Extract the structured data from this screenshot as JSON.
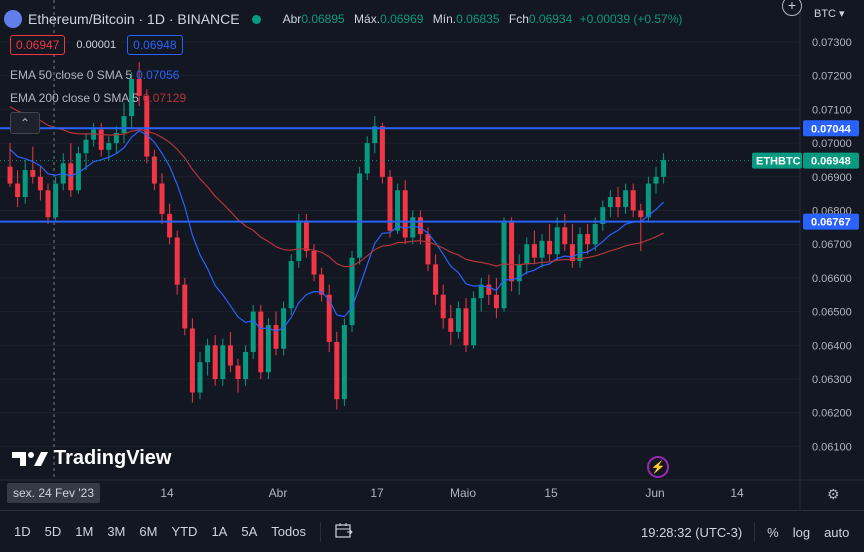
{
  "header": {
    "symbol_title": "Ethereum/Bitcoin · 1D · BINANCE",
    "open_label": "Abr",
    "open_value": "0.06895",
    "high_label": "Máx.",
    "high_value": "0.06969",
    "low_label": "Mín.",
    "low_value": "0.06835",
    "close_label": "Fch",
    "close_value": "0.06934",
    "change_value": "+0.00039 (+0.57%)"
  },
  "quote": {
    "sell": "0.06947",
    "spread": "0.00001",
    "buy": "0.06948"
  },
  "indicators": [
    {
      "label": "EMA 50 close 0 SMA 5",
      "value": "0.07056",
      "color": "#2962ff"
    },
    {
      "label": "EMA 200 close 0 SMA 5",
      "value": "0.07129",
      "color": "#b2353b"
    }
  ],
  "currency": "BTC",
  "price_axis": {
    "min": 0.0605,
    "max": 0.0737,
    "ticks": [
      "0.07300",
      "0.07200",
      "0.07100",
      "0.07000",
      "0.06900",
      "0.06800",
      "0.06700",
      "0.06600",
      "0.06500",
      "0.06400",
      "0.06300",
      "0.06200",
      "0.06100"
    ],
    "labels": [
      {
        "text": "0.07044",
        "value": 0.07044,
        "color": "#2962ff"
      },
      {
        "text": "0.06948",
        "value": 0.06948,
        "color": "#089981",
        "symbol": "ETHBTC"
      },
      {
        "text": "0.06767",
        "value": 0.06767,
        "color": "#2962ff"
      }
    ]
  },
  "time_axis": [
    "14",
    "Abr",
    "17",
    "Maio",
    "15",
    "Jun",
    "14"
  ],
  "hover_date": "sex. 24 Fev '23",
  "branding": "TradingView",
  "toolbar": {
    "ranges": [
      "1D",
      "5D",
      "1M",
      "3M",
      "6M",
      "YTD",
      "1A",
      "5A",
      "Todos"
    ],
    "time": "19:28:32 (UTC-3)",
    "percent": "%",
    "log": "log",
    "auto": "auto"
  },
  "colors": {
    "up": "#089981",
    "down": "#f23645",
    "ema50": "#2962ff",
    "ema200": "#b2353b",
    "hline": "#2962ff"
  },
  "chart_data": {
    "type": "candlestick",
    "candles": [
      [
        0.0693,
        0.07,
        0.0687,
        0.0688
      ],
      [
        0.0688,
        0.0692,
        0.0681,
        0.0684
      ],
      [
        0.0684,
        0.0695,
        0.0682,
        0.0692
      ],
      [
        0.0692,
        0.0699,
        0.0688,
        0.069
      ],
      [
        0.069,
        0.0693,
        0.0683,
        0.0686
      ],
      [
        0.0686,
        0.0688,
        0.0676,
        0.0678
      ],
      [
        0.0678,
        0.069,
        0.0677,
        0.0688
      ],
      [
        0.0688,
        0.0697,
        0.0686,
        0.0694
      ],
      [
        0.0694,
        0.07,
        0.0684,
        0.0686
      ],
      [
        0.0686,
        0.0699,
        0.0685,
        0.0697
      ],
      [
        0.0697,
        0.0703,
        0.0692,
        0.0701
      ],
      [
        0.0701,
        0.0706,
        0.0699,
        0.0704
      ],
      [
        0.0704,
        0.0706,
        0.0696,
        0.0698
      ],
      [
        0.0698,
        0.0702,
        0.0695,
        0.07
      ],
      [
        0.07,
        0.0705,
        0.0697,
        0.0703
      ],
      [
        0.0703,
        0.0712,
        0.07,
        0.0708
      ],
      [
        0.0708,
        0.0721,
        0.0704,
        0.0719
      ],
      [
        0.0719,
        0.0724,
        0.0711,
        0.0714
      ],
      [
        0.0714,
        0.0716,
        0.0694,
        0.0696
      ],
      [
        0.0696,
        0.0698,
        0.0686,
        0.0688
      ],
      [
        0.0688,
        0.0691,
        0.0676,
        0.0679
      ],
      [
        0.0679,
        0.0682,
        0.067,
        0.0672
      ],
      [
        0.0672,
        0.0674,
        0.0655,
        0.0658
      ],
      [
        0.0658,
        0.066,
        0.0643,
        0.0645
      ],
      [
        0.0645,
        0.0648,
        0.0623,
        0.0626
      ],
      [
        0.0626,
        0.0638,
        0.0624,
        0.0635
      ],
      [
        0.0635,
        0.0642,
        0.0631,
        0.064
      ],
      [
        0.064,
        0.0643,
        0.0628,
        0.063
      ],
      [
        0.063,
        0.0642,
        0.0628,
        0.064
      ],
      [
        0.064,
        0.0644,
        0.0632,
        0.0634
      ],
      [
        0.0634,
        0.0636,
        0.0626,
        0.063
      ],
      [
        0.063,
        0.064,
        0.0628,
        0.0638
      ],
      [
        0.0638,
        0.0652,
        0.0636,
        0.065
      ],
      [
        0.065,
        0.0652,
        0.063,
        0.0632
      ],
      [
        0.0632,
        0.0648,
        0.063,
        0.0646
      ],
      [
        0.0646,
        0.065,
        0.0637,
        0.0639
      ],
      [
        0.0639,
        0.0653,
        0.0637,
        0.0651
      ],
      [
        0.0651,
        0.0667,
        0.0649,
        0.0665
      ],
      [
        0.0665,
        0.0679,
        0.0663,
        0.0677
      ],
      [
        0.0677,
        0.0679,
        0.0666,
        0.0668
      ],
      [
        0.0668,
        0.067,
        0.0659,
        0.0661
      ],
      [
        0.0661,
        0.0663,
        0.0653,
        0.0655
      ],
      [
        0.0655,
        0.0658,
        0.0638,
        0.0641
      ],
      [
        0.0641,
        0.0644,
        0.0621,
        0.0624
      ],
      [
        0.0624,
        0.0648,
        0.0622,
        0.0646
      ],
      [
        0.0646,
        0.0668,
        0.0644,
        0.0666
      ],
      [
        0.0666,
        0.0693,
        0.0664,
        0.0691
      ],
      [
        0.0691,
        0.0702,
        0.0689,
        0.07
      ],
      [
        0.07,
        0.0708,
        0.0697,
        0.0705
      ],
      [
        0.0705,
        0.0706,
        0.0688,
        0.069
      ],
      [
        0.069,
        0.0692,
        0.0672,
        0.0674
      ],
      [
        0.0674,
        0.0688,
        0.0673,
        0.0686
      ],
      [
        0.0686,
        0.0689,
        0.067,
        0.0672
      ],
      [
        0.0672,
        0.068,
        0.067,
        0.0678
      ],
      [
        0.0678,
        0.068,
        0.067,
        0.0673
      ],
      [
        0.0673,
        0.0675,
        0.0662,
        0.0664
      ],
      [
        0.0664,
        0.0667,
        0.0652,
        0.0655
      ],
      [
        0.0655,
        0.0658,
        0.0645,
        0.0648
      ],
      [
        0.0648,
        0.0652,
        0.064,
        0.0644
      ],
      [
        0.0644,
        0.0653,
        0.0642,
        0.0651
      ],
      [
        0.0651,
        0.0654,
        0.0638,
        0.064
      ],
      [
        0.064,
        0.0656,
        0.0639,
        0.0654
      ],
      [
        0.0654,
        0.066,
        0.065,
        0.0658
      ],
      [
        0.0658,
        0.0661,
        0.0652,
        0.0655
      ],
      [
        0.0655,
        0.066,
        0.0648,
        0.0651
      ],
      [
        0.0651,
        0.0678,
        0.065,
        0.0677
      ],
      [
        0.0677,
        0.0678,
        0.0656,
        0.0659
      ],
      [
        0.0659,
        0.0667,
        0.0655,
        0.0664
      ],
      [
        0.0664,
        0.0672,
        0.0661,
        0.067
      ],
      [
        0.067,
        0.0674,
        0.0664,
        0.0666
      ],
      [
        0.0666,
        0.0673,
        0.0663,
        0.0671
      ],
      [
        0.0671,
        0.0676,
        0.0665,
        0.0667
      ],
      [
        0.0667,
        0.0678,
        0.0665,
        0.0675
      ],
      [
        0.0675,
        0.0679,
        0.0668,
        0.067
      ],
      [
        0.067,
        0.0676,
        0.0663,
        0.0665
      ],
      [
        0.0665,
        0.0675,
        0.0663,
        0.0673
      ],
      [
        0.0673,
        0.0676,
        0.0667,
        0.067
      ],
      [
        0.067,
        0.0678,
        0.0668,
        0.0676
      ],
      [
        0.0676,
        0.0683,
        0.0674,
        0.0681
      ],
      [
        0.0681,
        0.0686,
        0.0678,
        0.0684
      ],
      [
        0.0684,
        0.0687,
        0.0678,
        0.0681
      ],
      [
        0.0681,
        0.0688,
        0.0679,
        0.0686
      ],
      [
        0.0686,
        0.0688,
        0.0678,
        0.068
      ],
      [
        0.068,
        0.0682,
        0.0668,
        0.0678
      ],
      [
        0.0678,
        0.069,
        0.0677,
        0.0688
      ],
      [
        0.0688,
        0.0693,
        0.0685,
        0.069
      ],
      [
        0.069,
        0.0697,
        0.0688,
        0.0695
      ]
    ]
  }
}
